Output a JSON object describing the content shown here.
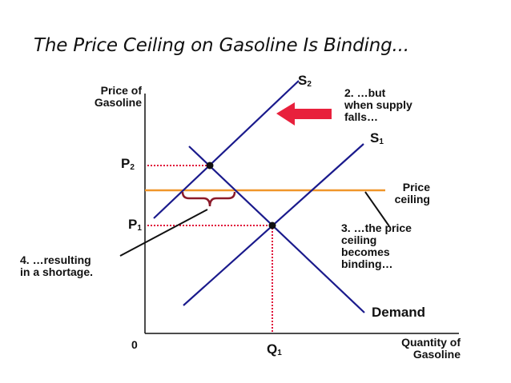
{
  "title": "The Price Ceiling on Gasoline Is Binding...",
  "axes": {
    "y_label": [
      "Price of",
      "Gasoline"
    ],
    "x_label": [
      "Quantity of",
      "Gasoline"
    ],
    "origin": "0"
  },
  "curves": {
    "s2": {
      "letter": "S",
      "sub": "2"
    },
    "s1": {
      "letter": "S",
      "sub": "1"
    },
    "demand": "Demand",
    "price_ceiling": [
      "Price",
      "ceiling"
    ]
  },
  "ticks": {
    "p2": {
      "letter": "P",
      "sub": "2"
    },
    "p1": {
      "letter": "P",
      "sub": "1"
    },
    "q1": {
      "letter": "Q",
      "sub": "1"
    }
  },
  "annotations": {
    "supply_falls": [
      "2. …but",
      "when supply",
      "falls…"
    ],
    "binding": [
      "3. …the price",
      "ceiling",
      "becomes",
      "binding…"
    ],
    "shortage": [
      "4. …resulting",
      "in a shortage."
    ]
  },
  "colors": {
    "curve": "#1a1a8c",
    "ceiling": "#f0962a",
    "dotted": "#e0103a",
    "arrow": "#e8203c",
    "brace": "#8b1a2a",
    "axis": "#111111"
  }
}
